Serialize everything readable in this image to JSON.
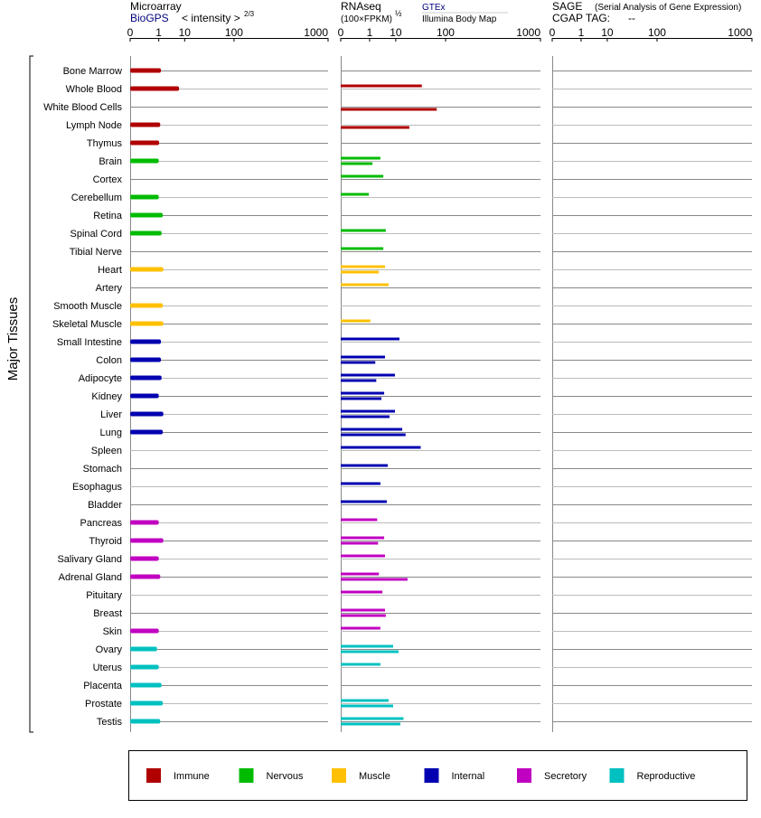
{
  "chart_data": {
    "type": "bar",
    "y_label": "Major Tissues",
    "groups": [
      {
        "name": "Immune",
        "color": "#b00000",
        "categories": [
          "Bone Marrow",
          "Whole Blood",
          "White Blood Cells",
          "Lymph Node",
          "Thymus"
        ]
      },
      {
        "name": "Nervous",
        "color": "#00bb00",
        "categories": [
          "Brain",
          "Cortex",
          "Cerebellum",
          "Retina",
          "Spinal Cord",
          "Tibial Nerve"
        ]
      },
      {
        "name": "Muscle",
        "color": "#ffc000",
        "categories": [
          "Heart",
          "Artery",
          "Smooth Muscle",
          "Skeletal Muscle"
        ]
      },
      {
        "name": "Internal",
        "color": "#0000b0",
        "categories": [
          "Small Intestine",
          "Colon",
          "Adipocyte",
          "Kidney",
          "Liver",
          "Lung",
          "Spleen",
          "Stomach",
          "Esophagus",
          "Bladder"
        ]
      },
      {
        "name": "Secretory",
        "color": "#c000c0",
        "categories": [
          "Pancreas",
          "Thyroid",
          "Salivary Gland",
          "Adrenal Gland",
          "Pituitary",
          "Breast",
          "Skin"
        ]
      },
      {
        "name": "Reproductive",
        "color": "#00c0c0",
        "categories": [
          "Ovary",
          "Uterus",
          "Placenta",
          "Prostate",
          "Testis"
        ]
      }
    ],
    "panels": [
      {
        "title": "Microarray",
        "source": "BioGPS",
        "axis_label": "< intensity >",
        "axis_exponent": "2/3",
        "xlim": [
          0,
          1000
        ],
        "xticks": [
          0,
          1,
          10,
          100,
          1000
        ],
        "series": [
          {
            "values": [
              1.3,
              6.8,
              null,
              1.2,
              1.05,
              1.0,
              null,
              1.0,
              1.6,
              1.4,
              null,
              1.7,
              null,
              1.6,
              1.7,
              1.3,
              1.3,
              1.4,
              1.0,
              1.7,
              1.6,
              null,
              null,
              null,
              null,
              1.0,
              1.7,
              1.0,
              1.2,
              null,
              null,
              1.0,
              0.8,
              1.0,
              1.4,
              1.6,
              1.2
            ]
          }
        ]
      },
      {
        "title": "RNAseq",
        "axis_label": "(100×FPKM)",
        "axis_exponent": "½",
        "xlim": [
          0,
          1000
        ],
        "xticks": [
          0,
          1,
          10,
          100,
          1000
        ],
        "series": [
          {
            "name": "GTEx",
            "values": [
              null,
              40,
              null,
              null,
              null,
              3.1,
              4.0,
              0.9,
              null,
              4.9,
              4.0,
              4.6,
              6.1,
              null,
              1.1,
              12.6,
              4.6,
              9.5,
              4.3,
              9.5,
              14.9,
              38,
              5.7,
              3.1,
              5.3,
              2.3,
              4.3,
              4.6,
              2.7,
              3.7,
              4.6,
              3.1,
              8.4,
              3.1,
              null,
              6.1,
              16
            ]
          },
          {
            "name": "Illumina Body Map",
            "values": [
              null,
              null,
              73,
              22,
              null,
              1.4,
              null,
              null,
              null,
              null,
              null,
              2.7,
              null,
              null,
              null,
              null,
              1.9,
              2.1,
              3.4,
              6.5,
              18,
              null,
              null,
              null,
              null,
              null,
              2.5,
              null,
              20,
              null,
              4.9,
              null,
              12,
              null,
              null,
              8.4,
              13.3
            ]
          }
        ]
      },
      {
        "title": "SAGE",
        "subtitle": "(Serial Analysis of Gene Expression)",
        "tag_label": "CGAP TAG:",
        "tag": "--",
        "xlim": [
          0,
          1000
        ],
        "xticks": [
          0,
          1,
          10,
          100,
          1000
        ],
        "series": []
      }
    ]
  }
}
